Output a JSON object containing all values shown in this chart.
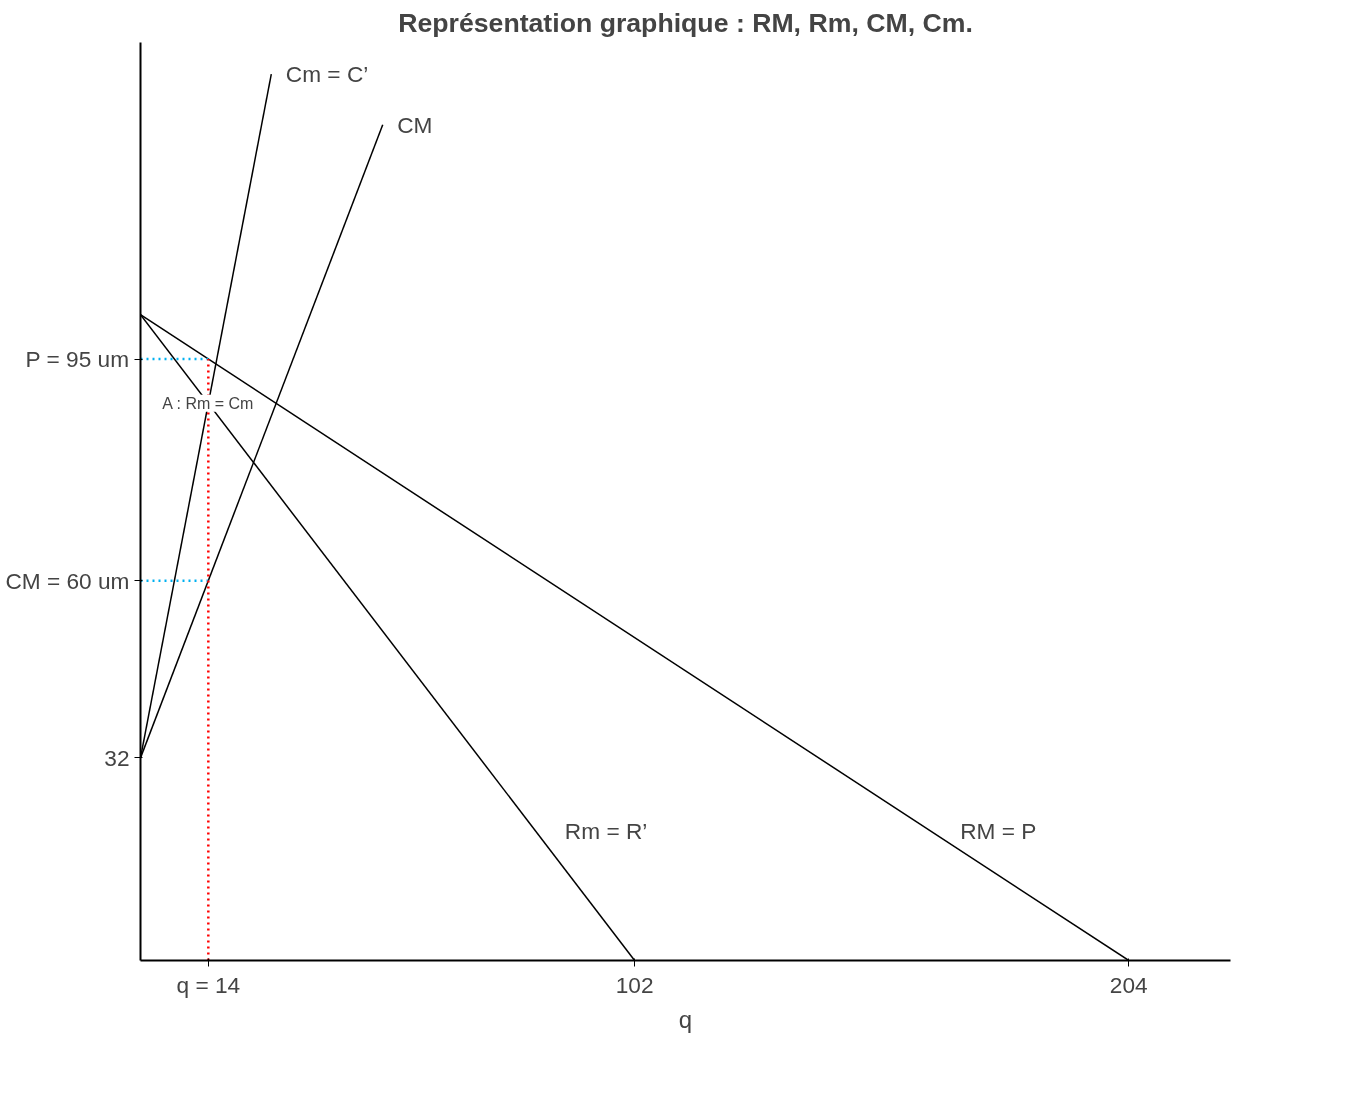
{
  "chart_data": {
    "type": "line",
    "title": "Représentation graphique : RM, Rm, CM, Cm.",
    "xlabel": "q",
    "xlim": [
      0,
      225
    ],
    "ylim": [
      0,
      145
    ],
    "xticks": [
      {
        "value": 14,
        "label": "q = 14"
      },
      102,
      204
    ],
    "yticks": [
      32,
      {
        "value": 60,
        "label": "CM = 60 um"
      },
      {
        "value": 95,
        "label": "P = 95 um"
      }
    ],
    "grid": false,
    "marker": "none",
    "line_style": "solid",
    "series": [
      {
        "name": "Cm = C’",
        "color": "#000000",
        "x": [
          0,
          27
        ],
        "values": [
          32,
          140
        ]
      },
      {
        "name": "CM",
        "color": "#000000",
        "x": [
          0,
          50
        ],
        "values": [
          32,
          132
        ]
      },
      {
        "name": "Rm = R’",
        "color": "#000000",
        "x": [
          0,
          102
        ],
        "values": [
          102,
          0
        ]
      },
      {
        "name": "RM = P",
        "color": "#000000",
        "x": [
          0,
          204
        ],
        "values": [
          102,
          0
        ]
      },
      {
        "color": "#00b0f0",
        "line_style": "dotted",
        "x": [
          0,
          14
        ],
        "values": [
          95,
          95
        ]
      },
      {
        "color": "#00b0f0",
        "line_style": "dotted",
        "x": [
          0,
          14
        ],
        "values": [
          60,
          60
        ]
      },
      {
        "color": "#ff0000",
        "line_style": "dotted",
        "x": [
          14,
          14
        ],
        "values": [
          0,
          95
        ]
      }
    ],
    "annotations": [
      {
        "text": "A : Rm = Cm",
        "x": 14,
        "y": 88
      }
    ]
  }
}
